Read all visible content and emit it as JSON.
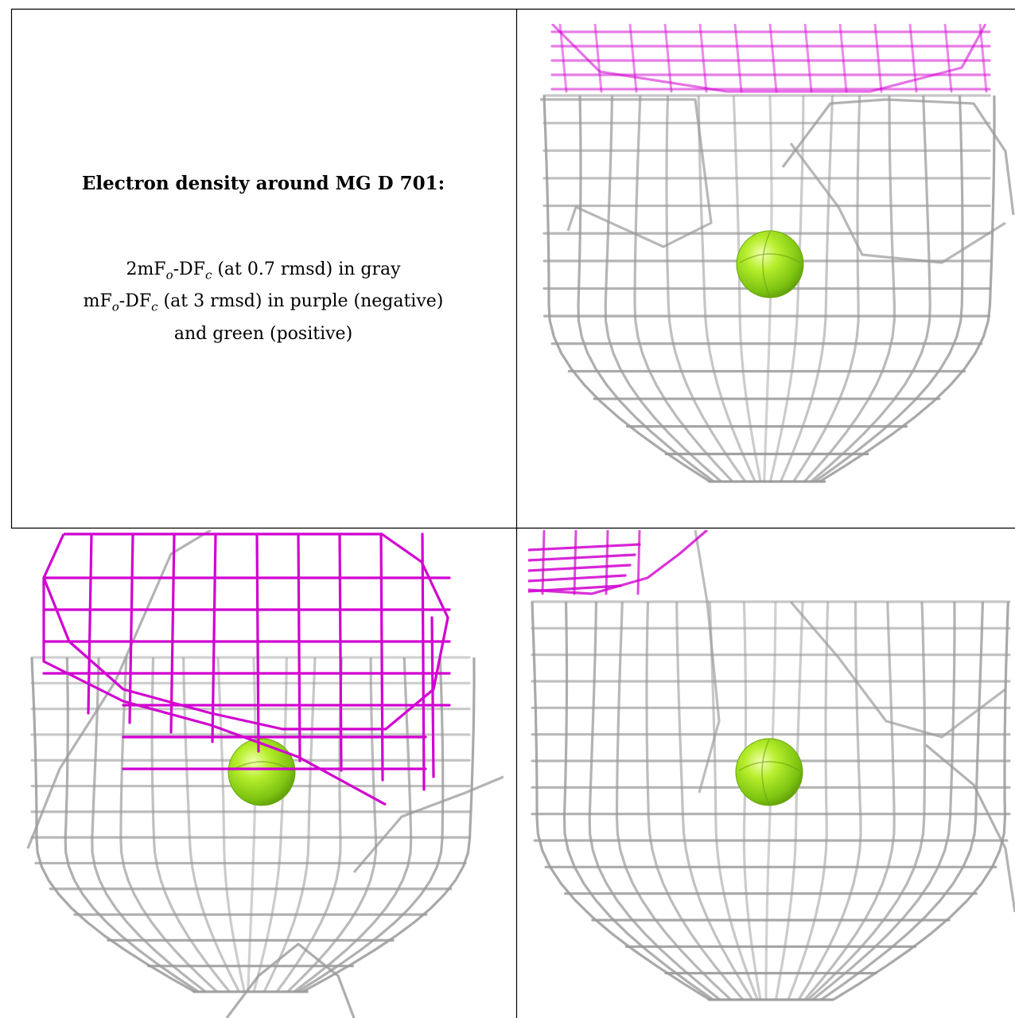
{
  "caption": {
    "title": "Electron density around MG D 701:",
    "line1": {
      "a": "2mF",
      "sub_o": "o",
      "b": "-DF",
      "sub_c": "c",
      "c": " (at 0.7 rmsd) in gray"
    },
    "line2": {
      "a": "mF",
      "sub_o": "o",
      "b": "-DF",
      "sub_c": "c",
      "c": " (at 3 rmsd) in purple (negative)"
    },
    "line3": "and green (positive)"
  },
  "colors": {
    "density_2fofc": "#9a9a9a",
    "density_negative": "#d100d1",
    "atom_mg": "#8fd61a",
    "border": "#000000"
  },
  "panels": [
    {
      "name": "view-top-right",
      "icon": "mg-atom-sphere"
    },
    {
      "name": "view-bottom-left",
      "icon": "mg-atom-sphere"
    },
    {
      "name": "view-bottom-right",
      "icon": "mg-atom-sphere"
    }
  ]
}
